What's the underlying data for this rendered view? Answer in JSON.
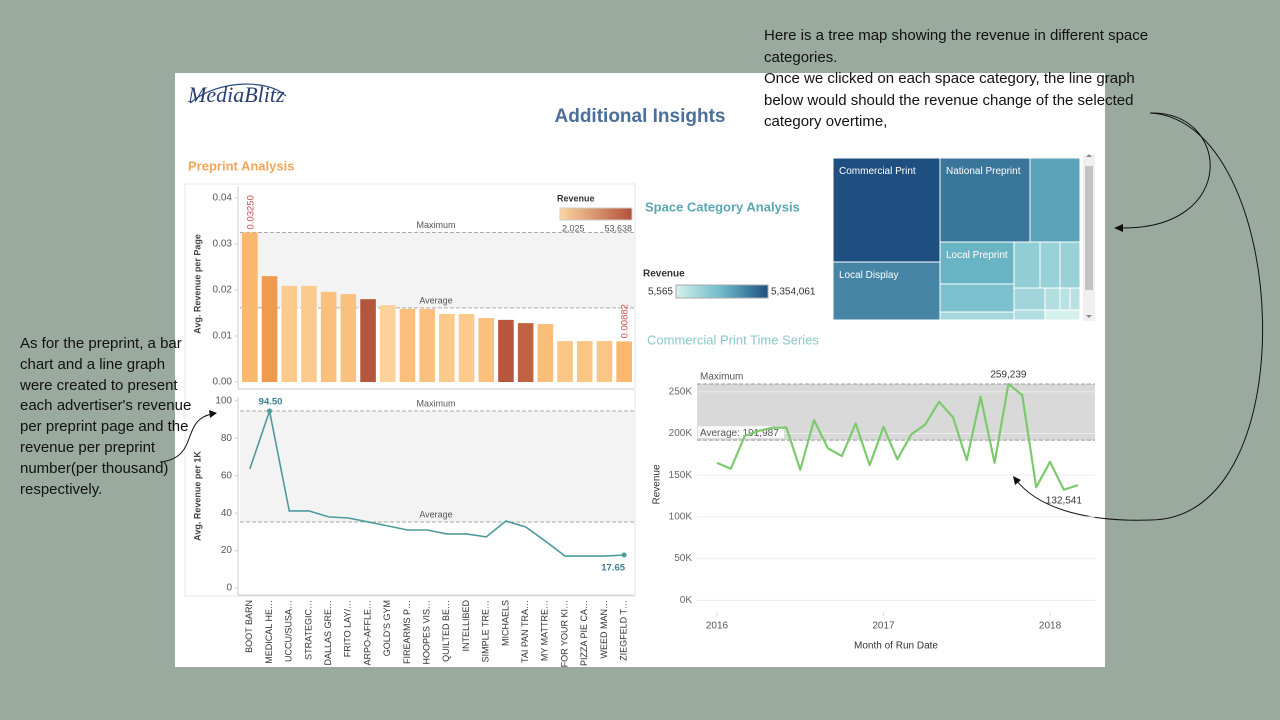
{
  "annotations": [
    "Here is a tree map showing the revenue in different space categories.",
    "Once we clicked on each space category, the line graph below would should the revenue change of the selected category overtime,",
    "As for the preprint, a bar chart and a line graph were created to present each advertiser's revenue per preprint page and the revenue per preprint number(per thousand) respectively."
  ],
  "dashboard": {
    "logo": "MediaBlitz",
    "title": "Additional Insights"
  },
  "chart_data": [
    {
      "type": "panels",
      "title": "Preprint Analysis",
      "categories": [
        "BOOT BARN",
        "MEDICAL HE…",
        "UCCU/SUSA…",
        "STRATEGIC…",
        "DALLAS GRE…",
        "FRITO LAY/…",
        "ARPO-AFFLE…",
        "GOLD'S GYM",
        "FIREARMS P…",
        "HOOPES VIS…",
        "QUILTED BE…",
        "INTELLIBED",
        "SIMPLE TRE…",
        "MICHAELS",
        "TAI PAN TRA…",
        "MY MATTRE…",
        "FOR YOUR KI…",
        "PIZZA PIE CA…",
        "WEED MAN…",
        "ZIEGFELD T…"
      ],
      "panels": [
        {
          "type": "bar",
          "y_label": "Avg. Revenue per Page",
          "ylim": [
            0,
            0.0426
          ],
          "yticks": [
            {
              "value": 0,
              "label": "0.00"
            },
            0.01,
            0.02,
            0.03,
            0.04
          ],
          "values": [
            0.0325,
            0.023,
            0.0209,
            0.0209,
            0.0196,
            0.0191,
            0.018,
            0.0167,
            0.0159,
            0.0159,
            0.0148,
            0.0148,
            0.0139,
            0.0135,
            0.0128,
            0.0126,
            0.0089,
            0.0089,
            0.0089,
            0.00882
          ],
          "value_labels": [
            "0.03250",
            null,
            null,
            null,
            null,
            null,
            null,
            null,
            null,
            null,
            null,
            null,
            null,
            null,
            null,
            null,
            null,
            null,
            null,
            "0.00882"
          ],
          "colors": [
            "#f9b86e",
            "#ef9a4f",
            "#fcca8c",
            "#fcca8c",
            "#fbc07d",
            "#fbc07d",
            "#b3563c",
            "#fcd19a",
            "#fbbf7c",
            "#fbc07d",
            "#fbc98a",
            "#fcca8c",
            "#fbc07d",
            "#b8573d",
            "#bf6343",
            "#fbbd7a",
            "#fbc585",
            "#fbc585",
            "#fbc585",
            "#fbb86e"
          ],
          "reference_lines": [
            {
              "label": "Maximum",
              "value": 0.0325
            },
            {
              "label": "Average",
              "value": 0.0161
            }
          ],
          "legend": {
            "title": "Revenue",
            "ticks": [
              {
                "value": 2025,
                "label": "2,025"
              },
              {
                "value": 53638,
                "label": "53,638"
              }
            ],
            "colors": [
              "#fdd6a0",
              "#b3503a"
            ]
          }
        },
        {
          "type": "line",
          "y_label": "Avg. Revenue per 1K",
          "ylim": [
            -3.7,
            102
          ],
          "yticks": [
            0,
            20,
            40,
            60,
            80,
            100
          ],
          "values": [
            63.6,
            94.5,
            41.2,
            41.2,
            38,
            37.4,
            35.3,
            33.2,
            31,
            31,
            28.9,
            28.9,
            27.3,
            35.8,
            32.6,
            25.1,
            17.1,
            17.1,
            17.1,
            17.65
          ],
          "value_labels": [
            null,
            "94.50",
            null,
            null,
            null,
            null,
            null,
            null,
            null,
            null,
            null,
            null,
            null,
            null,
            null,
            null,
            null,
            null,
            null,
            "17.65"
          ],
          "color": "#4e9a9b",
          "reference_lines": [
            {
              "label": "Maximum",
              "value": 94.5
            },
            {
              "label": "Average",
              "value": 35.3
            }
          ]
        }
      ]
    },
    {
      "type": "treemap",
      "title": "Space Category Analysis",
      "names": [
        "Commercial Print",
        "National Preprint",
        null,
        "Local Display",
        "Local Preprint",
        null,
        null,
        null,
        null,
        null,
        null,
        null,
        null,
        null,
        null,
        null
      ],
      "values": [
        5354061,
        3637000,
        2020000,
        2986000,
        1495000,
        997000,
        285000,
        575000,
        443000,
        443000,
        328000,
        159000,
        106000,
        106000,
        149000,
        5565
      ],
      "legend": {
        "title": "Revenue",
        "ticks": [
          {
            "value": 5565,
            "label": "5,565"
          },
          {
            "value": 5354061,
            "label": "5,354,061"
          }
        ],
        "colors": [
          "#d6f0ec",
          "#6cbac9",
          "#1f4f80"
        ]
      }
    },
    {
      "type": "line",
      "title": "Commercial Print Time Series",
      "x_label": "Month of Run Date",
      "y_label": "Revenue",
      "x": [
        2016,
        2016.083,
        2016.167,
        2016.25,
        2016.333,
        2016.417,
        2016.5,
        2016.583,
        2016.667,
        2016.75,
        2016.833,
        2016.917,
        2017,
        2017.083,
        2017.167,
        2017.25,
        2017.333,
        2017.417,
        2017.5,
        2017.583,
        2017.667,
        2017.75,
        2017.833,
        2017.917,
        2018,
        2018.083,
        2018.167
      ],
      "values": [
        164700,
        157700,
        197000,
        203000,
        207000,
        207000,
        156500,
        216000,
        182000,
        173000,
        212000,
        162000,
        208000,
        169000,
        199000,
        210500,
        238000,
        219500,
        168000,
        244000,
        164700,
        259239,
        246000,
        135500,
        166000,
        132541,
        138000
      ],
      "value_labels": [
        null,
        null,
        null,
        null,
        null,
        null,
        null,
        null,
        null,
        null,
        null,
        null,
        null,
        null,
        null,
        null,
        null,
        null,
        null,
        null,
        null,
        "259,239",
        null,
        null,
        null,
        "132,541",
        null
      ],
      "color": "#7dca6e",
      "xlim": [
        2015.88,
        2018.27
      ],
      "xticks": [
        2016,
        2017,
        2018
      ],
      "ylim": [
        -14000,
        260500
      ],
      "yticks": [
        {
          "value": 0,
          "label": "0K"
        },
        {
          "value": 50000,
          "label": "50K"
        },
        {
          "value": 100000,
          "label": "100K"
        },
        {
          "value": 150000,
          "label": "150K"
        },
        {
          "value": 200000,
          "label": "200K"
        },
        {
          "value": 250000,
          "label": "250K"
        }
      ],
      "reference_lines": [
        {
          "label": "Maximum",
          "value": 259239
        },
        {
          "label": "Average: 191,987",
          "value": 191987
        }
      ]
    }
  ]
}
